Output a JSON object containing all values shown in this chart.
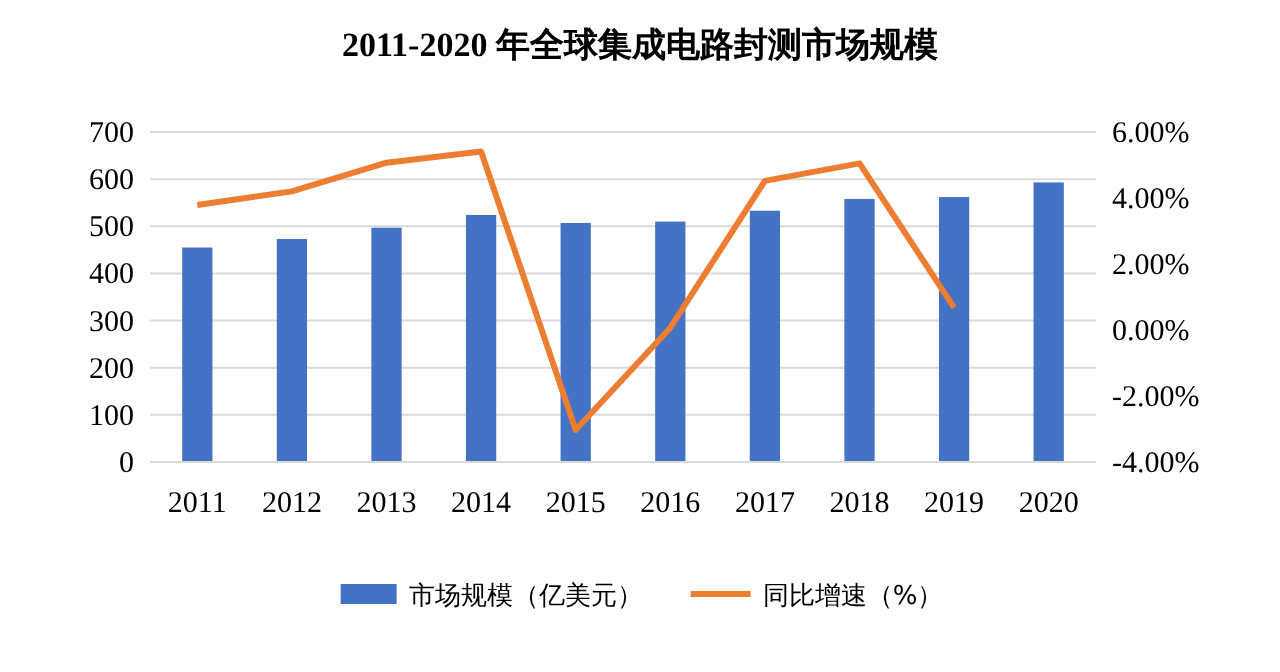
{
  "chart_data": {
    "type": "bar",
    "title": "2011-2020 年全球集成电路封测市场规模",
    "categories": [
      "2011",
      "2012",
      "2013",
      "2014",
      "2015",
      "2016",
      "2017",
      "2018",
      "2019",
      "2020"
    ],
    "series": [
      {
        "name": "市场规模（亿美元）",
        "color": "#4472c4",
        "values": [
          455,
          473,
          497,
          524,
          507,
          510,
          533,
          558,
          562,
          593
        ]
      },
      {
        "name": "同比增速（%）",
        "type": "line",
        "axis": "y2",
        "color": "#ed7d31",
        "values": [
          3.79,
          4.2,
          5.07,
          5.41,
          -3.03,
          0.07,
          4.52,
          5.05,
          0.68,
          null
        ]
      }
    ],
    "ylim": [
      0,
      700
    ],
    "yticks": [
      0,
      100,
      200,
      300,
      400,
      500,
      600,
      700
    ],
    "y2lim": [
      -4,
      6
    ],
    "y2ticks": [
      {
        "value": -4,
        "label": "-4.00%"
      },
      {
        "value": -2,
        "label": "-2.00%"
      },
      {
        "value": 0,
        "label": "0.00%"
      },
      {
        "value": 2,
        "label": "2.00%"
      },
      {
        "value": 4,
        "label": "4.00%"
      },
      {
        "value": 6,
        "label": "6.00%"
      }
    ],
    "grid": "y",
    "legend": "bottom"
  }
}
